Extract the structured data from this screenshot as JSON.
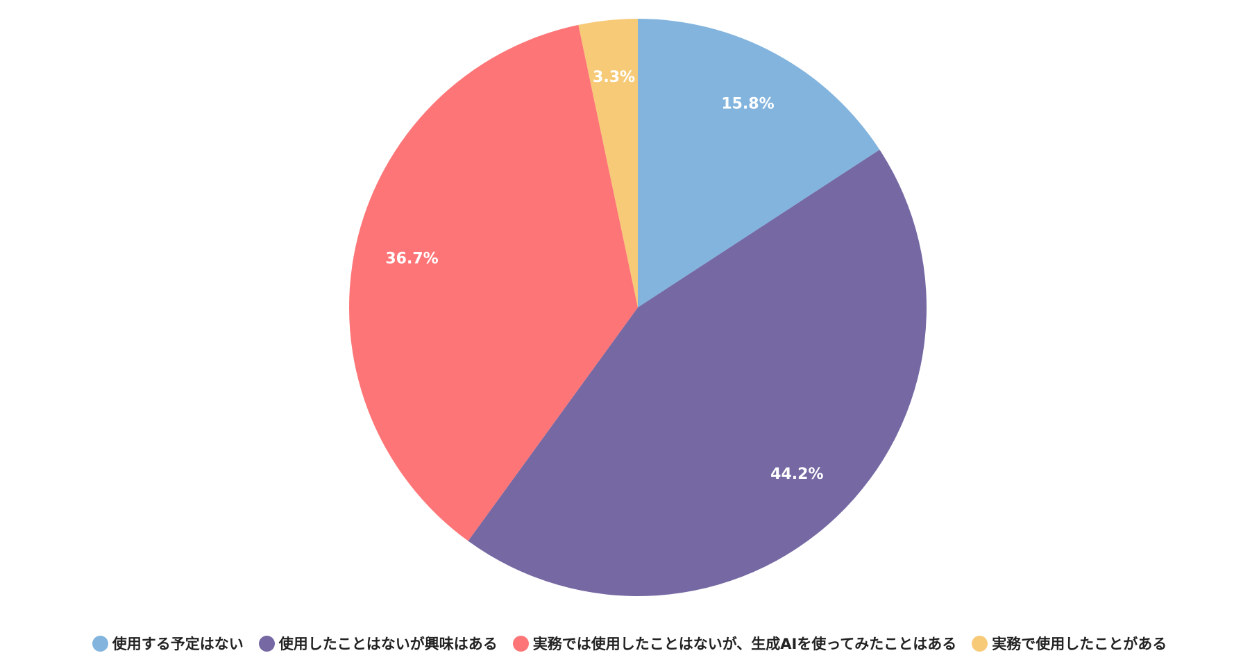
{
  "chart_data": {
    "type": "pie",
    "categories": [
      "使用する予定はない",
      "使用したことはないが興味はある",
      "実務では使用したことはないが、生成AIを使ってみたことはある",
      "実務で使用したことがある"
    ],
    "values": [
      15.8,
      44.2,
      36.7,
      3.3
    ],
    "value_labels": [
      "15.8%",
      "44.2%",
      "36.7%",
      "3.3%"
    ],
    "colors": [
      "#82b4de",
      "#7568a3",
      "#fe7577",
      "#f6ca77"
    ],
    "legend": "bottom"
  }
}
